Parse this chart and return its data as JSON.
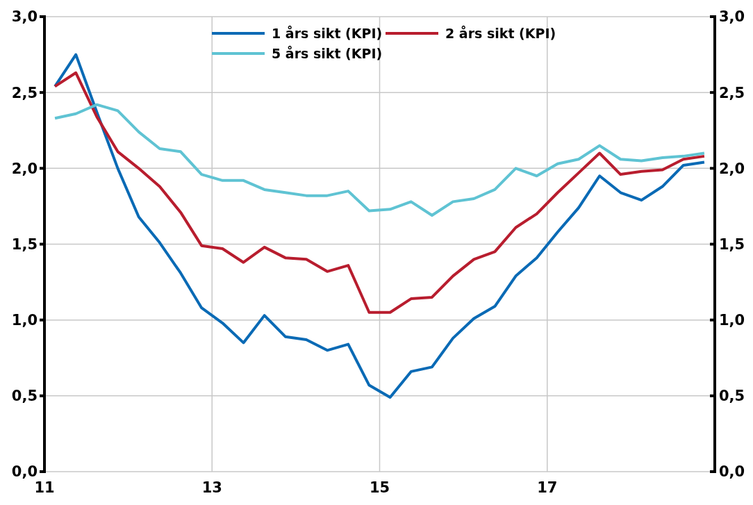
{
  "chart_data": {
    "type": "line",
    "x": [
      11.125,
      11.375,
      11.625,
      11.875,
      12.125,
      12.375,
      12.625,
      12.875,
      13.125,
      13.375,
      13.625,
      13.875,
      14.125,
      14.375,
      14.625,
      14.875,
      15.125,
      15.375,
      15.625,
      15.875,
      16.125,
      16.375,
      16.625,
      16.875,
      17.125,
      17.375,
      17.625,
      17.875,
      18.125,
      18.375,
      18.625,
      18.875
    ],
    "series": [
      {
        "name": "1 års sikt (KPI)",
        "color": "#0a6ab5",
        "values": [
          2.54,
          2.75,
          2.37,
          2.0,
          1.68,
          1.51,
          1.31,
          1.08,
          0.98,
          0.85,
          1.03,
          0.89,
          0.87,
          0.8,
          0.84,
          0.57,
          0.49,
          0.66,
          0.69,
          0.88,
          1.01,
          1.09,
          1.29,
          1.41,
          1.58,
          1.74,
          1.95,
          1.84,
          1.79,
          1.88,
          2.02,
          2.04
        ]
      },
      {
        "name": "2 års sikt (KPI)",
        "color": "#b81d2e",
        "values": [
          2.54,
          2.63,
          2.34,
          2.11,
          2.0,
          1.88,
          1.71,
          1.49,
          1.47,
          1.38,
          1.48,
          1.41,
          1.4,
          1.32,
          1.36,
          1.05,
          1.05,
          1.14,
          1.15,
          1.29,
          1.4,
          1.45,
          1.61,
          1.7,
          1.84,
          1.97,
          2.1,
          1.96,
          1.98,
          1.99,
          2.06,
          2.08
        ]
      },
      {
        "name": "5 års sikt (KPI)",
        "color": "#5fc3d3",
        "values": [
          2.33,
          2.36,
          2.42,
          2.38,
          2.24,
          2.13,
          2.11,
          1.96,
          1.92,
          1.92,
          1.86,
          1.84,
          1.82,
          1.82,
          1.85,
          1.72,
          1.73,
          1.78,
          1.69,
          1.78,
          1.8,
          1.86,
          2.0,
          1.95,
          2.03,
          2.06,
          2.15,
          2.06,
          2.05,
          2.07,
          2.08,
          2.1
        ]
      }
    ],
    "xlim": [
      11,
      19
    ],
    "xticks": [
      11,
      13,
      15,
      17
    ],
    "ylim": [
      0,
      3
    ],
    "yticks": [
      {
        "value": 0,
        "label": "0,0"
      },
      {
        "value": 0.5,
        "label": "0,5"
      },
      {
        "value": 1,
        "label": "1,0"
      },
      {
        "value": 1.5,
        "label": "1,5"
      },
      {
        "value": 2,
        "label": "2,0"
      },
      {
        "value": 2.5,
        "label": "2,5"
      },
      {
        "value": 3,
        "label": "3,0"
      }
    ],
    "y2lim": [
      0,
      3
    ],
    "y2ticks": [
      {
        "value": 0,
        "label": "0,0"
      },
      {
        "value": 0.5,
        "label": "0,5"
      },
      {
        "value": 1,
        "label": "1,0"
      },
      {
        "value": 1.5,
        "label": "1,5"
      },
      {
        "value": 2,
        "label": "2,0"
      },
      {
        "value": 2.5,
        "label": "2,5"
      },
      {
        "value": 3,
        "label": "3,0"
      }
    ],
    "grid": true,
    "legend": "top",
    "marker": "none",
    "line_style": "solid"
  }
}
